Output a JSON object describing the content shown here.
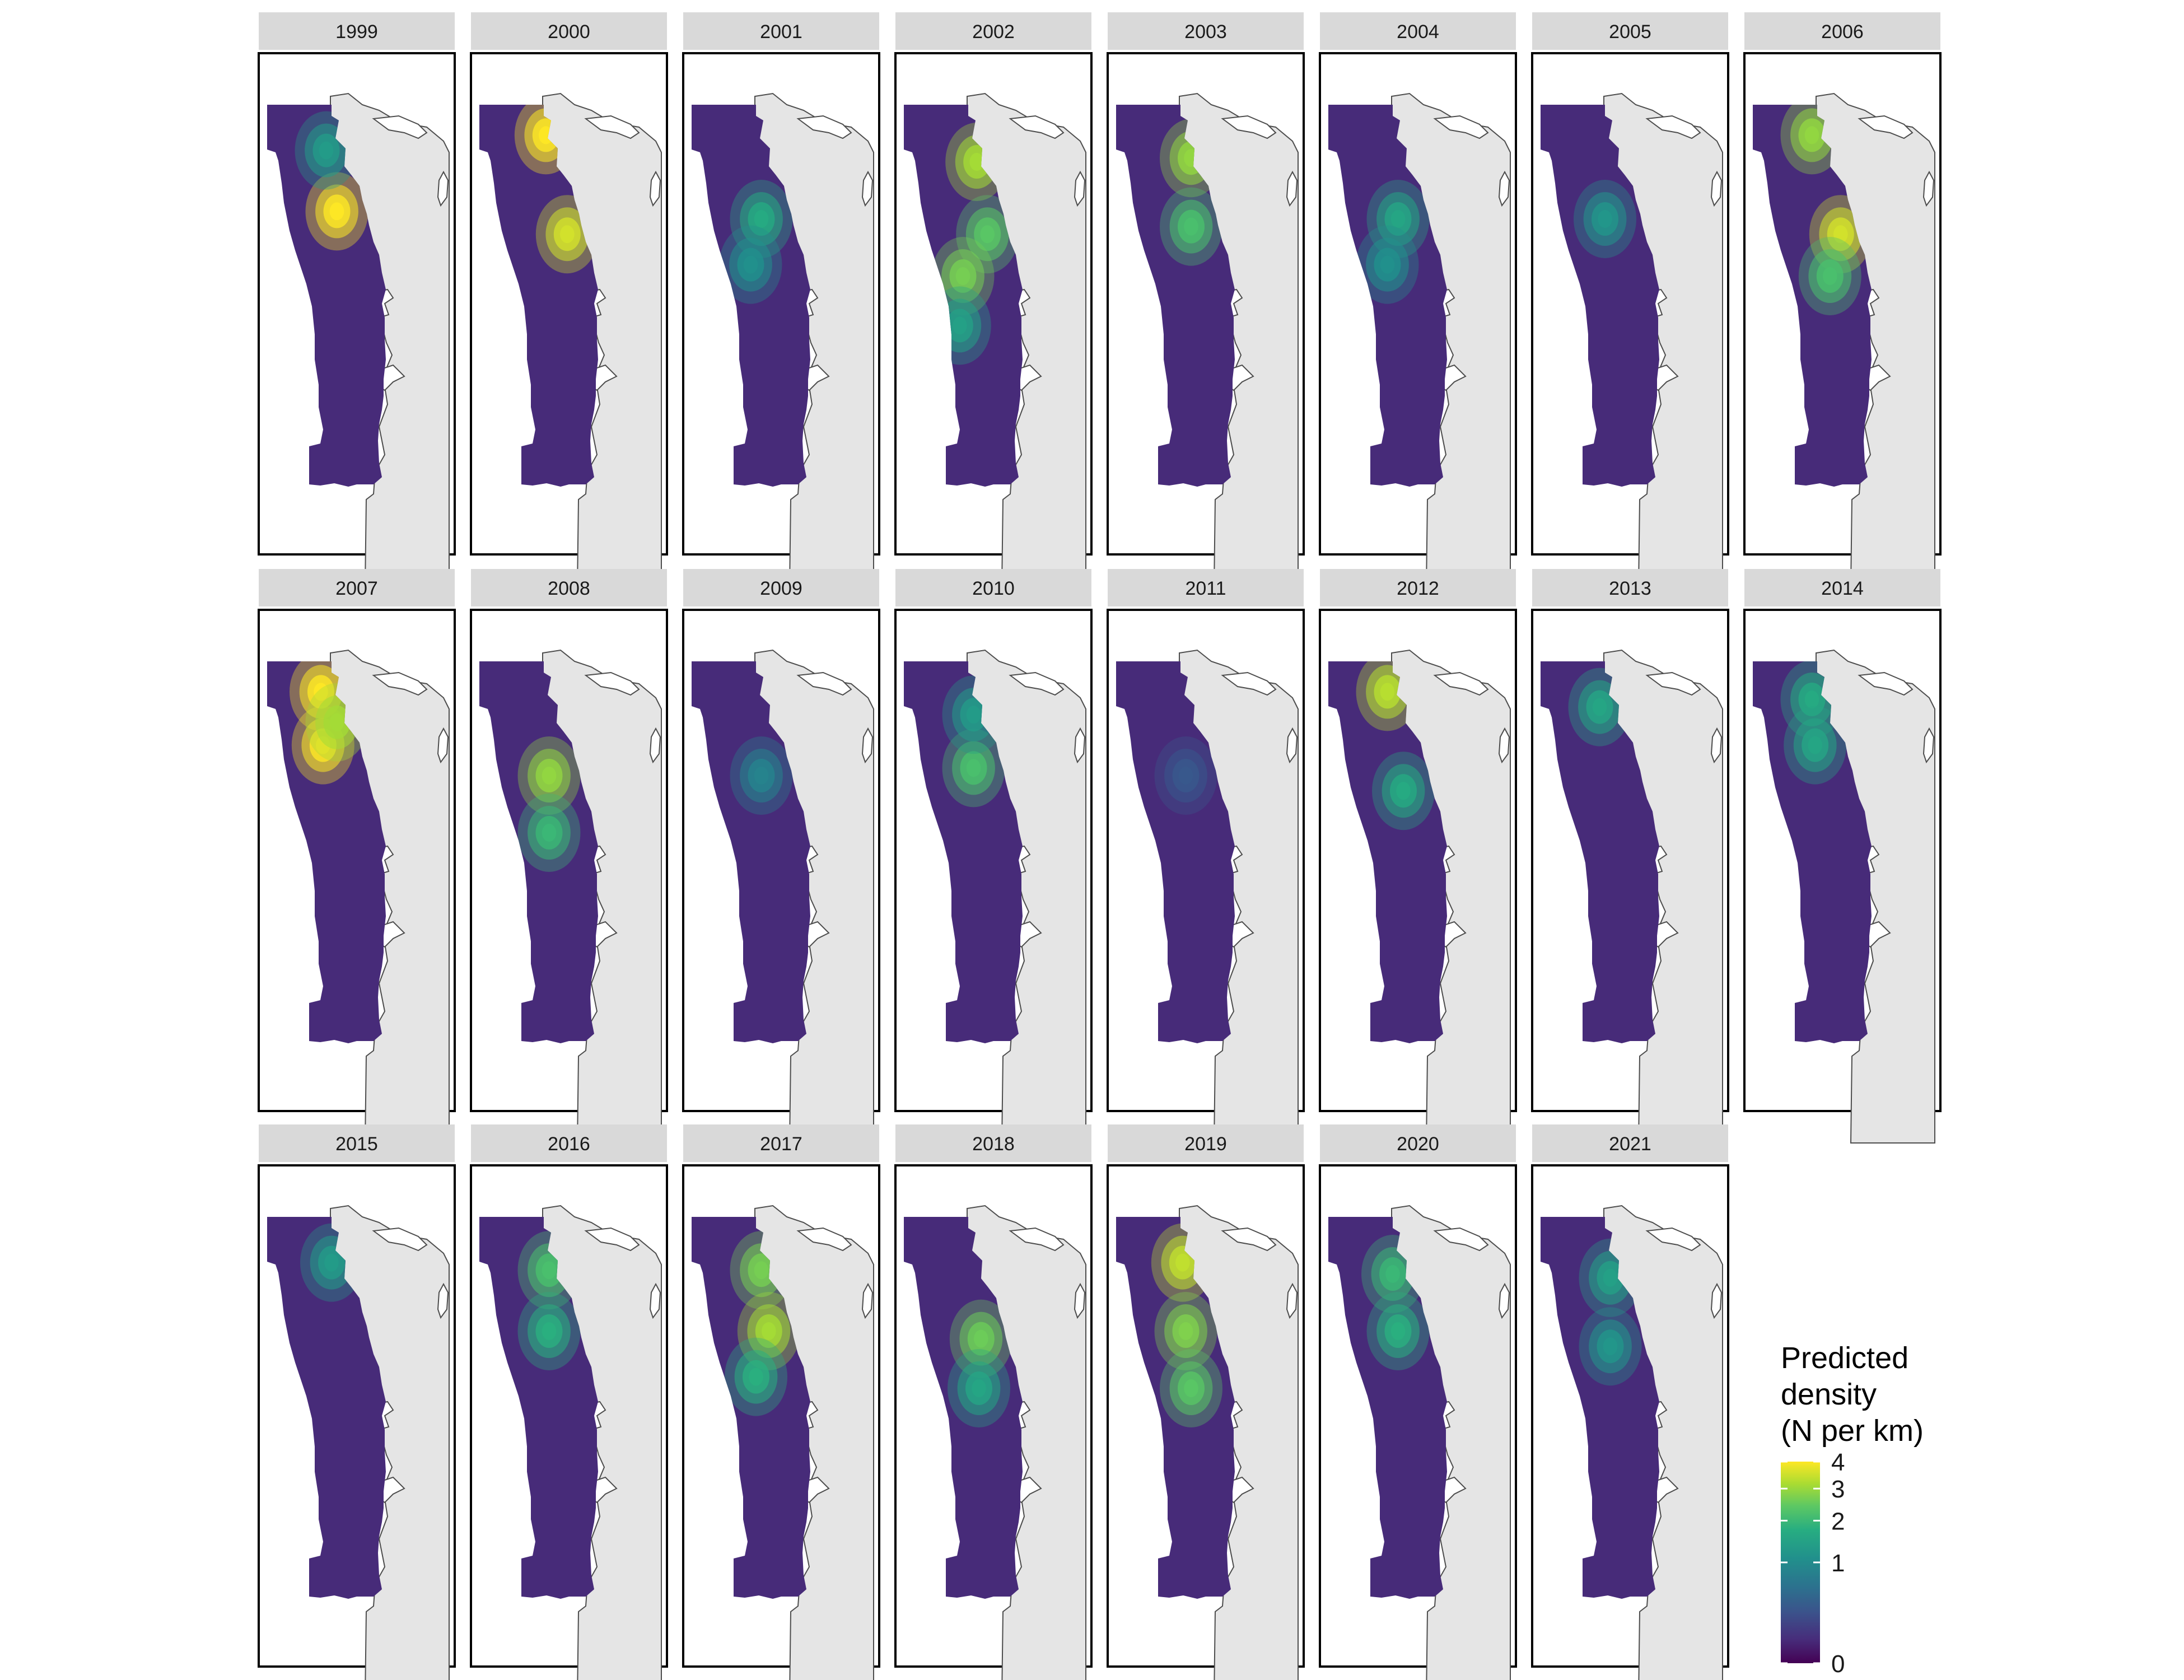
{
  "figure": {
    "type": "faceted-map",
    "description_units": "Predicted density (N per km)",
    "panels": [
      {
        "year": "1999",
        "hotspots": [
          {
            "lat": 0.72,
            "lon": 0.55,
            "v": 4.0
          },
          {
            "lat": 0.88,
            "lon": 0.45,
            "v": 1.2
          }
        ]
      },
      {
        "year": "2000",
        "hotspots": [
          {
            "lat": 0.92,
            "lon": 0.52,
            "v": 4.0
          },
          {
            "lat": 0.66,
            "lon": 0.72,
            "v": 3.5
          }
        ]
      },
      {
        "year": "2001",
        "hotspots": [
          {
            "lat": 0.7,
            "lon": 0.55,
            "v": 1.5
          },
          {
            "lat": 0.58,
            "lon": 0.45,
            "v": 1.0
          }
        ]
      },
      {
        "year": "2002",
        "hotspots": [
          {
            "lat": 0.85,
            "lon": 0.58,
            "v": 3.0
          },
          {
            "lat": 0.66,
            "lon": 0.68,
            "v": 2.2
          },
          {
            "lat": 0.55,
            "lon": 0.45,
            "v": 2.5
          },
          {
            "lat": 0.42,
            "lon": 0.42,
            "v": 1.3
          }
        ]
      },
      {
        "year": "2003",
        "hotspots": [
          {
            "lat": 0.86,
            "lon": 0.6,
            "v": 2.8
          },
          {
            "lat": 0.68,
            "lon": 0.6,
            "v": 2.0
          }
        ]
      },
      {
        "year": "2004",
        "hotspots": [
          {
            "lat": 0.7,
            "lon": 0.55,
            "v": 1.4
          },
          {
            "lat": 0.58,
            "lon": 0.45,
            "v": 1.0
          }
        ]
      },
      {
        "year": "2005",
        "hotspots": [
          {
            "lat": 0.7,
            "lon": 0.5,
            "v": 1.1
          }
        ]
      },
      {
        "year": "2006",
        "hotspots": [
          {
            "lat": 0.92,
            "lon": 0.45,
            "v": 2.8
          },
          {
            "lat": 0.66,
            "lon": 0.72,
            "v": 3.5
          },
          {
            "lat": 0.55,
            "lon": 0.62,
            "v": 2.0
          }
        ]
      },
      {
        "year": "2007",
        "hotspots": [
          {
            "lat": 0.92,
            "lon": 0.4,
            "v": 4.0
          },
          {
            "lat": 0.78,
            "lon": 0.42,
            "v": 4.0
          },
          {
            "lat": 0.84,
            "lon": 0.55,
            "v": 3.0
          }
        ]
      },
      {
        "year": "2008",
        "hotspots": [
          {
            "lat": 0.7,
            "lon": 0.55,
            "v": 2.8
          },
          {
            "lat": 0.55,
            "lon": 0.55,
            "v": 1.8
          }
        ]
      },
      {
        "year": "2009",
        "hotspots": [
          {
            "lat": 0.7,
            "lon": 0.55,
            "v": 0.8
          }
        ]
      },
      {
        "year": "2010",
        "hotspots": [
          {
            "lat": 0.72,
            "lon": 0.55,
            "v": 2.0
          },
          {
            "lat": 0.86,
            "lon": 0.55,
            "v": 1.2
          }
        ]
      },
      {
        "year": "2011",
        "hotspots": [
          {
            "lat": 0.7,
            "lon": 0.55,
            "v": 0.3
          }
        ]
      },
      {
        "year": "2012",
        "hotspots": [
          {
            "lat": 0.92,
            "lon": 0.45,
            "v": 3.2
          },
          {
            "lat": 0.66,
            "lon": 0.6,
            "v": 1.5
          }
        ]
      },
      {
        "year": "2013",
        "hotspots": [
          {
            "lat": 0.88,
            "lon": 0.45,
            "v": 1.4
          }
        ]
      },
      {
        "year": "2014",
        "hotspots": [
          {
            "lat": 0.9,
            "lon": 0.45,
            "v": 1.5
          },
          {
            "lat": 0.78,
            "lon": 0.48,
            "v": 1.4
          }
        ]
      },
      {
        "year": "2015",
        "hotspots": [
          {
            "lat": 0.88,
            "lon": 0.5,
            "v": 1.2
          }
        ]
      },
      {
        "year": "2016",
        "hotspots": [
          {
            "lat": 0.86,
            "lon": 0.55,
            "v": 2.0
          },
          {
            "lat": 0.7,
            "lon": 0.55,
            "v": 1.6
          }
        ]
      },
      {
        "year": "2017",
        "hotspots": [
          {
            "lat": 0.86,
            "lon": 0.55,
            "v": 2.5
          },
          {
            "lat": 0.7,
            "lon": 0.62,
            "v": 3.0
          },
          {
            "lat": 0.58,
            "lon": 0.5,
            "v": 1.6
          }
        ]
      },
      {
        "year": "2018",
        "hotspots": [
          {
            "lat": 0.68,
            "lon": 0.62,
            "v": 2.4
          },
          {
            "lat": 0.55,
            "lon": 0.6,
            "v": 1.4
          }
        ]
      },
      {
        "year": "2019",
        "hotspots": [
          {
            "lat": 0.88,
            "lon": 0.52,
            "v": 3.3
          },
          {
            "lat": 0.7,
            "lon": 0.55,
            "v": 2.6
          },
          {
            "lat": 0.55,
            "lon": 0.6,
            "v": 2.2
          }
        ]
      },
      {
        "year": "2020",
        "hotspots": [
          {
            "lat": 0.85,
            "lon": 0.5,
            "v": 1.8
          },
          {
            "lat": 0.7,
            "lon": 0.55,
            "v": 1.6
          }
        ]
      },
      {
        "year": "2021",
        "hotspots": [
          {
            "lat": 0.84,
            "lon": 0.55,
            "v": 1.3
          },
          {
            "lat": 0.66,
            "lon": 0.55,
            "v": 1.1
          }
        ]
      }
    ]
  },
  "legend": {
    "title_lines": [
      "Predicted",
      "density",
      "(N per km)"
    ],
    "ticks": [
      "4",
      "3",
      "2",
      "1",
      "0"
    ],
    "tick_values": [
      4,
      3,
      2,
      1,
      0
    ],
    "colors": [
      "#440154",
      "#472D7B",
      "#3B528B",
      "#2C728E",
      "#21908C",
      "#27AD81",
      "#5DC863",
      "#AADC32",
      "#FDE725"
    ]
  }
}
